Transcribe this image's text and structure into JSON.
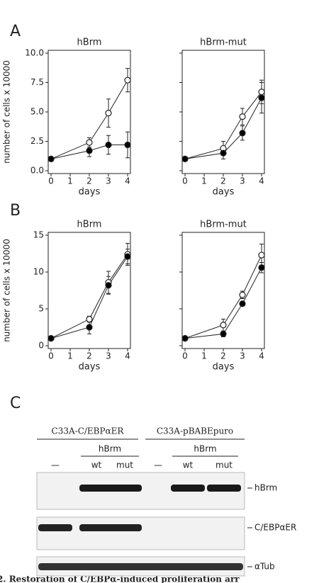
{
  "panel_labels": [
    "A",
    "B",
    "C"
  ],
  "chart_data": [
    {
      "type": "line",
      "title": "hBrm",
      "ylabel": "number of cells x 10000",
      "xlabel": "days",
      "x": [
        0,
        2,
        3,
        4
      ],
      "xlim": [
        0,
        4
      ],
      "xticks": [
        0,
        1,
        2,
        3,
        4
      ],
      "ylim": [
        0,
        10
      ],
      "yticks": [
        {
          "value": 0,
          "label": "0.0"
        },
        2.5,
        {
          "value": 5,
          "label": "5.0"
        },
        7.5,
        {
          "value": 10,
          "label": "10.0"
        }
      ],
      "ytick_labels": true,
      "series": [
        {
          "color": "#ffffff",
          "values": [
            1,
            2.4,
            4.9,
            7.7
          ],
          "errors": [
            0,
            0.4,
            1.2,
            1.0
          ]
        },
        {
          "color": "#000000",
          "values": [
            1,
            1.7,
            2.2,
            2.2
          ],
          "errors": [
            0,
            0.5,
            0.8,
            1.1
          ]
        }
      ]
    },
    {
      "type": "line",
      "title": "hBrm-mut",
      "xlabel": "days",
      "x": [
        0,
        2,
        3,
        4
      ],
      "xlim": [
        0,
        4
      ],
      "xticks": [
        0,
        1,
        2,
        3,
        4
      ],
      "ylim": [
        0,
        10
      ],
      "yticks": [
        0,
        2.5,
        5,
        7.5,
        10
      ],
      "ytick_labels": false,
      "series": [
        {
          "color": "#ffffff",
          "values": [
            1,
            1.9,
            4.6,
            6.7
          ],
          "errors": [
            0,
            0.6,
            0.7,
            1.0
          ]
        },
        {
          "color": "#000000",
          "values": [
            1,
            1.5,
            3.2,
            6.2
          ],
          "errors": [
            0,
            0.5,
            0.6,
            1.3
          ]
        }
      ]
    },
    {
      "type": "line",
      "title": "hBrm",
      "ylabel": "number of cells x 10000",
      "xlabel": "days",
      "x": [
        0,
        2,
        3,
        4
      ],
      "xlim": [
        0,
        4
      ],
      "xticks": [
        0,
        1,
        2,
        3,
        4
      ],
      "ylim": [
        0,
        15
      ],
      "yticks": [
        0,
        5,
        10,
        15
      ],
      "ytick_labels": true,
      "series": [
        {
          "color": "#ffffff",
          "values": [
            1,
            3.6,
            8.6,
            12.4
          ],
          "errors": [
            0,
            0.4,
            1.5,
            1.5
          ]
        },
        {
          "color": "#000000",
          "values": [
            1,
            2.5,
            8.2,
            12.1
          ],
          "errors": [
            0,
            0.9,
            1.2,
            1.0
          ]
        }
      ]
    },
    {
      "type": "line",
      "title": "hBrm-mut",
      "xlabel": "days",
      "x": [
        0,
        2,
        3,
        4
      ],
      "xlim": [
        0,
        4
      ],
      "xticks": [
        0,
        1,
        2,
        3,
        4
      ],
      "ylim": [
        0,
        15
      ],
      "yticks": [
        0,
        5,
        10,
        15
      ],
      "ytick_labels": false,
      "series": [
        {
          "color": "#ffffff",
          "values": [
            1,
            2.8,
            6.9,
            12.3
          ],
          "errors": [
            0,
            0.8,
            0.5,
            1.5
          ]
        },
        {
          "color": "#000000",
          "values": [
            1,
            1.6,
            5.7,
            10.6
          ],
          "errors": [
            0,
            0.4,
            0.3,
            0.7
          ]
        }
      ]
    }
  ],
  "blot": {
    "groups": [
      {
        "label": "C33A-C/EBPαER",
        "sublabel": "hBrm",
        "lanes": [
          "—",
          "wt",
          "mut"
        ]
      },
      {
        "label": "C33A-pBABEpuro",
        "sublabel": "hBrm",
        "lanes": [
          "—",
          "wt",
          "mut"
        ]
      }
    ],
    "rows": [
      "hBrm",
      "C/EBPαER",
      "αTub"
    ]
  },
  "caption": "2. Restoration of C/EBPα-induced proliferation arr"
}
